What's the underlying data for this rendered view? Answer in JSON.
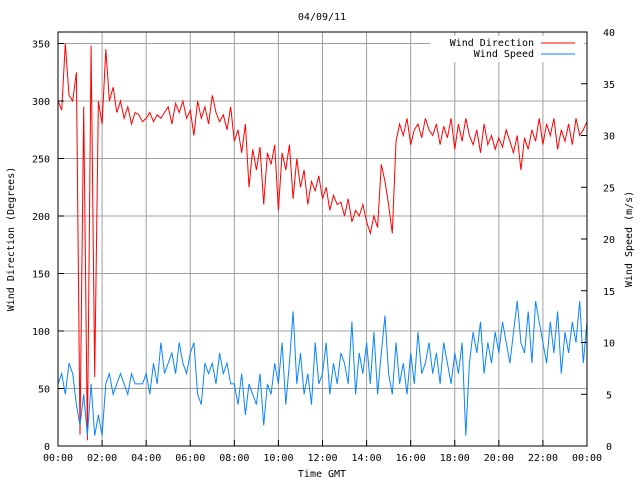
{
  "chart_data": {
    "type": "line",
    "title": "04/09/11",
    "xlabel": "Time GMT",
    "ylabel": "Wind Direction (Degrees)",
    "y2label": "Wind Speed (m/s)",
    "xlim_minutes": [
      0,
      1440
    ],
    "ylim": [
      0,
      360
    ],
    "y2lim": [
      0,
      40
    ],
    "x_tick_labels": [
      "00:00",
      "02:00",
      "04:00",
      "06:00",
      "08:00",
      "10:00",
      "12:00",
      "14:00",
      "16:00",
      "18:00",
      "20:00",
      "22:00",
      "00:00"
    ],
    "y_ticks": [
      0,
      50,
      100,
      150,
      200,
      250,
      300,
      350
    ],
    "y2_ticks": [
      0,
      5,
      10,
      15,
      20,
      25,
      30,
      35,
      40
    ],
    "grid": true,
    "legend_position": "top-right",
    "x_step_minutes": 10,
    "series": [
      {
        "name": "Wind Direction",
        "axis": "left",
        "color": "#ff0000",
        "values": [
          300,
          292,
          350,
          305,
          300,
          325,
          10,
          295,
          5,
          348,
          60,
          300,
          280,
          345,
          300,
          312,
          290,
          300,
          285,
          295,
          280,
          290,
          288,
          282,
          285,
          290,
          282,
          288,
          285,
          290,
          295,
          280,
          298,
          290,
          300,
          285,
          292,
          270,
          300,
          285,
          295,
          280,
          305,
          290,
          282,
          288,
          275,
          295,
          265,
          275,
          255,
          280,
          225,
          258,
          240,
          260,
          210,
          255,
          245,
          262,
          205,
          255,
          240,
          262,
          215,
          250,
          225,
          240,
          210,
          230,
          222,
          235,
          215,
          225,
          205,
          218,
          210,
          212,
          200,
          215,
          195,
          205,
          200,
          210,
          195,
          185,
          200,
          190,
          245,
          230,
          210,
          185,
          265,
          280,
          270,
          285,
          262,
          275,
          280,
          268,
          285,
          275,
          270,
          280,
          262,
          278,
          268,
          285,
          258,
          280,
          265,
          285,
          270,
          262,
          275,
          255,
          280,
          262,
          270,
          258,
          268,
          260,
          275,
          265,
          255,
          270,
          240,
          268,
          258,
          275,
          265,
          285,
          262,
          280,
          270,
          285,
          258,
          275,
          265,
          280,
          262,
          285,
          270,
          275,
          282
        ]
      },
      {
        "name": "Wind Speed",
        "axis": "right",
        "color": "#0a84ff",
        "values": [
          6,
          7,
          5,
          8,
          7,
          4,
          2,
          5,
          1,
          6,
          1,
          3,
          1,
          6,
          7,
          5,
          6,
          7,
          6,
          5,
          7,
          6,
          6,
          6,
          7,
          5,
          8,
          6,
          10,
          7,
          8,
          9,
          7,
          10,
          8,
          7,
          9,
          10,
          5,
          4,
          8,
          7,
          8,
          6,
          9,
          7,
          8,
          6,
          6,
          4,
          7,
          3,
          6,
          5,
          4,
          7,
          2,
          6,
          5,
          8,
          6,
          10,
          4,
          8,
          13,
          6,
          9,
          5,
          7,
          4,
          10,
          6,
          7,
          10,
          5,
          8,
          6,
          9,
          8,
          6,
          12,
          5,
          9,
          7,
          10,
          6,
          11,
          5,
          9,
          12.6,
          7,
          5,
          10,
          6,
          8,
          5,
          9,
          6,
          11,
          7,
          8,
          10,
          7,
          9,
          6,
          10,
          8,
          6,
          9,
          7,
          10,
          1,
          8,
          11,
          9,
          12,
          7,
          10,
          8,
          11,
          9,
          12,
          10,
          8,
          11,
          14,
          10,
          9,
          13,
          8,
          14,
          12,
          10,
          8,
          12,
          9,
          13,
          7,
          11,
          9,
          12,
          10,
          14,
          8,
          12
        ]
      }
    ]
  }
}
